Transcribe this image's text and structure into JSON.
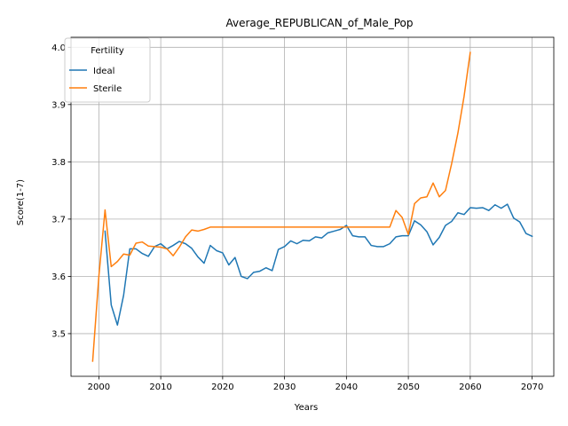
{
  "chart_data": {
    "type": "line",
    "title": "Average_REPUBLICAN_of_Male_Pop",
    "xlabel": "Years",
    "ylabel": "Score(1-7)",
    "xlim": [
      1995.5,
      2073.5
    ],
    "ylim": [
      3.4255,
      4.0175
    ],
    "x_ticks": [
      2000,
      2010,
      2020,
      2030,
      2040,
      2050,
      2060,
      2070
    ],
    "y_ticks": [
      3.5,
      3.6,
      3.7,
      3.8,
      3.9,
      4.0
    ],
    "y_tick_labels": [
      "3.5",
      "3.6",
      "3.7",
      "3.8",
      "3.9",
      "4.0"
    ],
    "grid": true,
    "legend": {
      "title": "Fertility",
      "placement": "top-left"
    },
    "series": [
      {
        "name": "Ideal",
        "color": "#1f77b4",
        "points": [
          [
            2001,
            3.679
          ],
          [
            2002,
            3.55
          ],
          [
            2003,
            3.515
          ],
          [
            2004,
            3.567
          ],
          [
            2005,
            3.648
          ],
          [
            2006,
            3.648
          ],
          [
            2007,
            3.64
          ],
          [
            2008,
            3.635
          ],
          [
            2009,
            3.652
          ],
          [
            2010,
            3.657
          ],
          [
            2011,
            3.648
          ],
          [
            2012,
            3.654
          ],
          [
            2013,
            3.661
          ],
          [
            2014,
            3.657
          ],
          [
            2015,
            3.649
          ],
          [
            2016,
            3.634
          ],
          [
            2017,
            3.623
          ],
          [
            2018,
            3.654
          ],
          [
            2019,
            3.645
          ],
          [
            2020,
            3.641
          ],
          [
            2021,
            3.62
          ],
          [
            2022,
            3.633
          ],
          [
            2023,
            3.6
          ],
          [
            2024,
            3.596
          ],
          [
            2025,
            3.607
          ],
          [
            2026,
            3.609
          ],
          [
            2027,
            3.615
          ],
          [
            2028,
            3.61
          ],
          [
            2029,
            3.647
          ],
          [
            2030,
            3.652
          ],
          [
            2031,
            3.662
          ],
          [
            2032,
            3.657
          ],
          [
            2033,
            3.663
          ],
          [
            2034,
            3.662
          ],
          [
            2035,
            3.669
          ],
          [
            2036,
            3.667
          ],
          [
            2037,
            3.676
          ],
          [
            2038,
            3.679
          ],
          [
            2039,
            3.682
          ],
          [
            2040,
            3.689
          ],
          [
            2041,
            3.671
          ],
          [
            2042,
            3.669
          ],
          [
            2043,
            3.669
          ],
          [
            2044,
            3.654
          ],
          [
            2045,
            3.652
          ],
          [
            2046,
            3.652
          ],
          [
            2047,
            3.657
          ],
          [
            2048,
            3.669
          ],
          [
            2049,
            3.671
          ],
          [
            2050,
            3.671
          ],
          [
            2051,
            3.697
          ],
          [
            2052,
            3.69
          ],
          [
            2053,
            3.678
          ],
          [
            2054,
            3.655
          ],
          [
            2055,
            3.668
          ],
          [
            2056,
            3.689
          ],
          [
            2057,
            3.696
          ],
          [
            2058,
            3.711
          ],
          [
            2059,
            3.708
          ],
          [
            2060,
            3.72
          ],
          [
            2061,
            3.719
          ],
          [
            2062,
            3.72
          ],
          [
            2063,
            3.715
          ],
          [
            2064,
            3.725
          ],
          [
            2065,
            3.719
          ],
          [
            2066,
            3.726
          ],
          [
            2067,
            3.702
          ],
          [
            2068,
            3.695
          ],
          [
            2069,
            3.675
          ],
          [
            2070,
            3.67
          ]
        ]
      },
      {
        "name": "Sterile",
        "color": "#ff7f0e",
        "points": [
          [
            1999,
            3.452
          ],
          [
            2000,
            3.6
          ],
          [
            2001,
            3.716
          ],
          [
            2002,
            3.617
          ],
          [
            2003,
            3.626
          ],
          [
            2004,
            3.639
          ],
          [
            2005,
            3.637
          ],
          [
            2006,
            3.658
          ],
          [
            2007,
            3.66
          ],
          [
            2008,
            3.653
          ],
          [
            2009,
            3.652
          ],
          [
            2010,
            3.651
          ],
          [
            2011,
            3.648
          ],
          [
            2012,
            3.636
          ],
          [
            2013,
            3.651
          ],
          [
            2014,
            3.669
          ],
          [
            2015,
            3.681
          ],
          [
            2016,
            3.679
          ],
          [
            2017,
            3.682
          ],
          [
            2018,
            3.686
          ],
          [
            2019,
            3.686
          ],
          [
            2020,
            3.686
          ],
          [
            2021,
            3.686
          ],
          [
            2022,
            3.686
          ],
          [
            2023,
            3.686
          ],
          [
            2024,
            3.686
          ],
          [
            2025,
            3.686
          ],
          [
            2026,
            3.686
          ],
          [
            2027,
            3.686
          ],
          [
            2028,
            3.686
          ],
          [
            2029,
            3.686
          ],
          [
            2030,
            3.686
          ],
          [
            2031,
            3.686
          ],
          [
            2032,
            3.686
          ],
          [
            2033,
            3.686
          ],
          [
            2034,
            3.686
          ],
          [
            2035,
            3.686
          ],
          [
            2036,
            3.686
          ],
          [
            2037,
            3.686
          ],
          [
            2038,
            3.686
          ],
          [
            2039,
            3.686
          ],
          [
            2040,
            3.686
          ],
          [
            2041,
            3.686
          ],
          [
            2042,
            3.686
          ],
          [
            2043,
            3.686
          ],
          [
            2044,
            3.686
          ],
          [
            2045,
            3.686
          ],
          [
            2046,
            3.686
          ],
          [
            2047,
            3.686
          ],
          [
            2048,
            3.715
          ],
          [
            2049,
            3.703
          ],
          [
            2050,
            3.673
          ],
          [
            2051,
            3.727
          ],
          [
            2052,
            3.737
          ],
          [
            2053,
            3.739
          ],
          [
            2054,
            3.763
          ],
          [
            2055,
            3.739
          ],
          [
            2056,
            3.75
          ],
          [
            2057,
            3.797
          ],
          [
            2058,
            3.85
          ],
          [
            2059,
            3.914
          ],
          [
            2060,
            3.991
          ]
        ]
      }
    ]
  }
}
